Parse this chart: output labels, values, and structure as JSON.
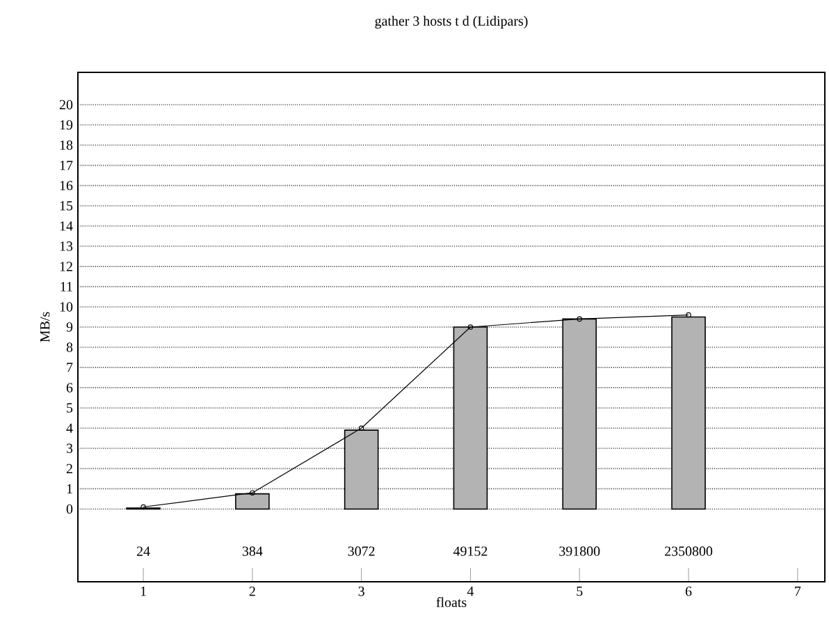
{
  "chart_data": {
    "type": "bar",
    "title": "gather 3 hosts t d (Lidipars)",
    "xlabel": "floats",
    "ylabel": "MB/s",
    "x": [
      1,
      2,
      3,
      4,
      5,
      6
    ],
    "series": [
      {
        "color": "#b3b3b3",
        "values": [
          0.05,
          0.75,
          3.9,
          9.0,
          9.4,
          9.5
        ]
      },
      {
        "type": "line",
        "color": "#000000",
        "values": [
          0.1,
          0.8,
          4.0,
          9.0,
          9.4,
          9.6
        ]
      }
    ],
    "marker": "circle",
    "line_style": "solid",
    "grid": "y",
    "xlim": [
      0.4,
      7.25
    ],
    "ylim": [
      -3.6,
      21.6
    ],
    "xticks": [
      1,
      2,
      3,
      4,
      5,
      6,
      7
    ],
    "yticks": [
      0,
      1,
      2,
      3,
      4,
      5,
      6,
      7,
      8,
      9,
      10,
      11,
      12,
      13,
      14,
      15,
      16,
      17,
      18,
      19,
      20
    ],
    "annotations": [
      "24",
      "384",
      "3072",
      "49152",
      "391800",
      "2350800"
    ]
  }
}
